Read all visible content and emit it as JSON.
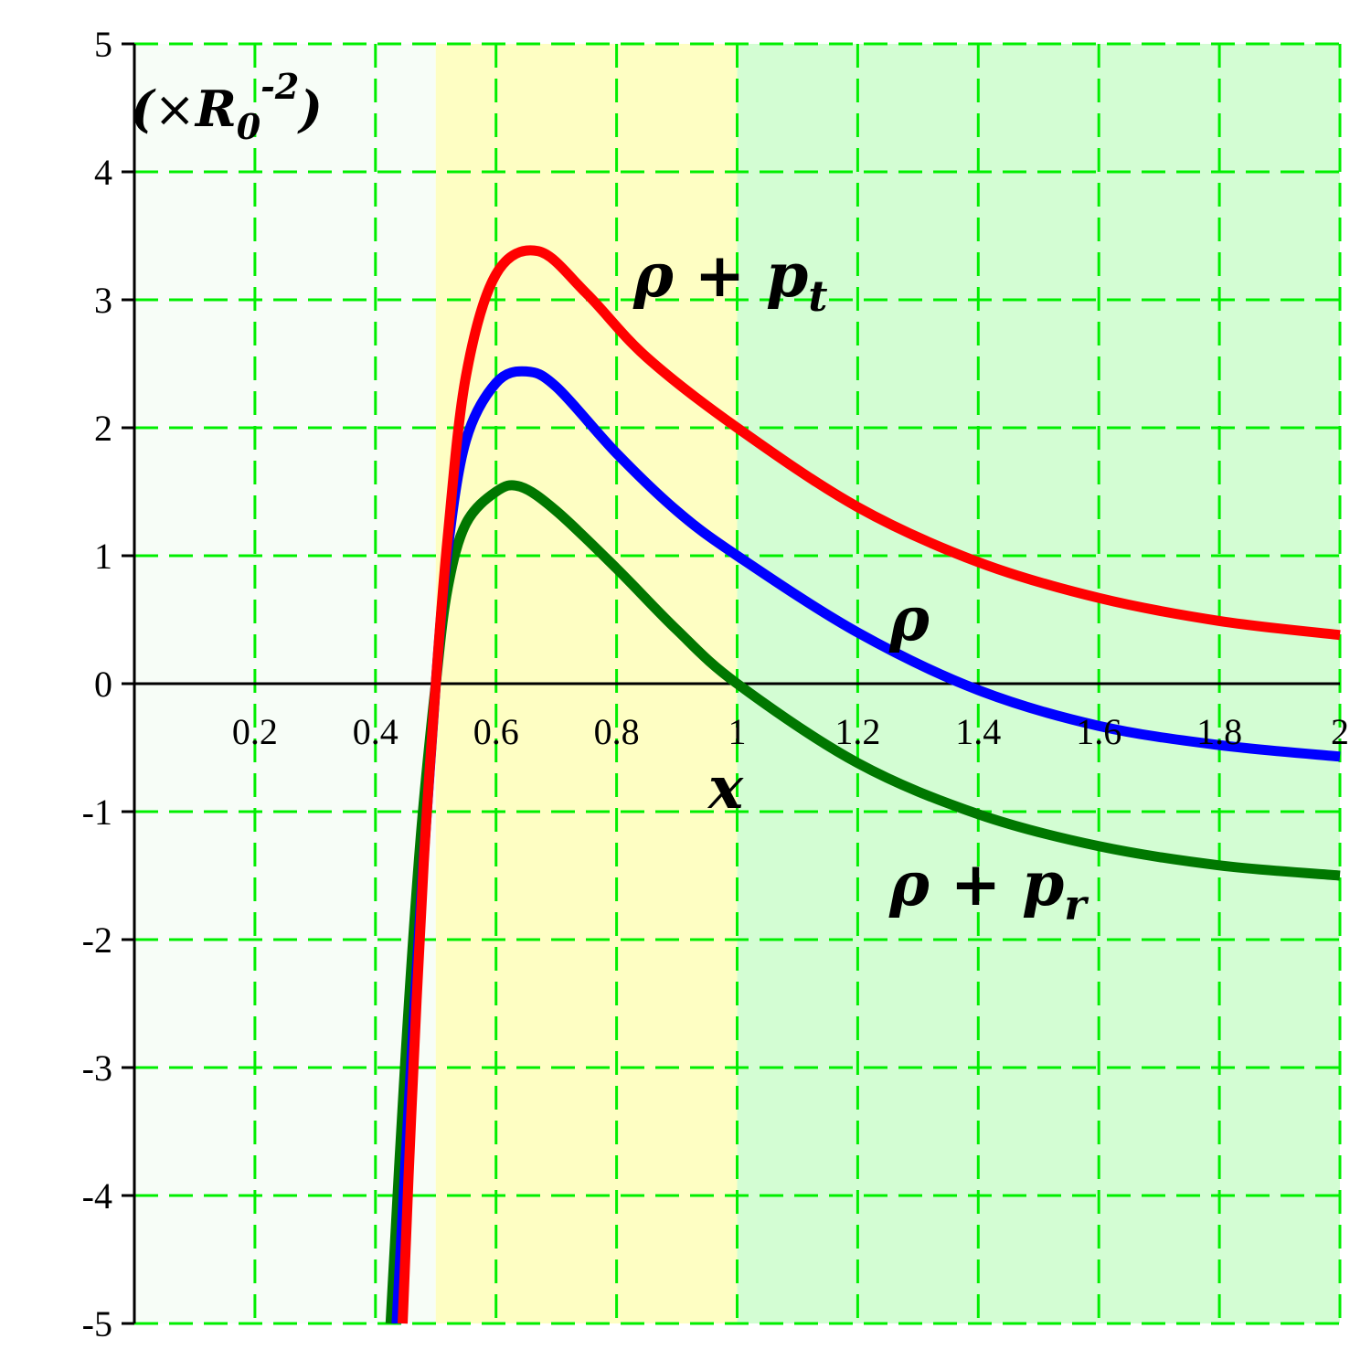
{
  "chart_data": {
    "type": "line",
    "x_range": [
      0,
      2
    ],
    "y_range": [
      -5,
      5
    ],
    "x_ticks": [
      0.2,
      0.4,
      0.6,
      0.8,
      1,
      1.2,
      1.4,
      1.6,
      1.8,
      2
    ],
    "x_tick_labels": [
      "0.2",
      "0.4",
      "0.6",
      "0.8",
      "1",
      "1.2",
      "1.4",
      "1.6",
      "1.8",
      "2"
    ],
    "y_ticks": [
      -5,
      -4,
      -3,
      -2,
      -1,
      0,
      1,
      2,
      3,
      4,
      5
    ],
    "y_tick_labels": [
      "-5",
      "-4",
      "-3",
      "-2",
      "-1",
      "0",
      "1",
      "2",
      "3",
      "4",
      "5"
    ],
    "xlabel": "x",
    "ylabel": "(×R0-2)",
    "unit_label": {
      "open": "(",
      "times": "×",
      "symbol": "R",
      "subscript": "0",
      "superscript": "-2",
      "close": ")"
    },
    "grid": true,
    "grid_color": "#00ee00",
    "regions": [
      {
        "x_from": 0,
        "x_to": 0.5,
        "color": "#f7fdf7"
      },
      {
        "x_from": 0.5,
        "x_to": 1.0,
        "color": "#fefec3"
      },
      {
        "x_from": 1.0,
        "x_to": 2.0,
        "color": "#d3fdd3"
      }
    ],
    "series": [
      {
        "name": "ρ+pt",
        "label_main": "ρ + p",
        "label_sub": "t",
        "color": "#ff0000",
        "points": [
          [
            0.445,
            -5.0
          ],
          [
            0.46,
            -3.3
          ],
          [
            0.48,
            -1.4
          ],
          [
            0.5,
            0.0
          ],
          [
            0.52,
            1.15
          ],
          [
            0.55,
            2.4
          ],
          [
            0.6,
            3.2
          ],
          [
            0.67,
            3.38
          ],
          [
            0.75,
            3.05
          ],
          [
            0.85,
            2.55
          ],
          [
            1.0,
            2.0
          ],
          [
            1.2,
            1.38
          ],
          [
            1.4,
            0.95
          ],
          [
            1.6,
            0.67
          ],
          [
            1.8,
            0.49
          ],
          [
            2.0,
            0.38
          ]
        ]
      },
      {
        "name": "ρ",
        "label_main": "ρ",
        "label_sub": "",
        "color": "#0000ff",
        "points": [
          [
            0.435,
            -5.0
          ],
          [
            0.455,
            -3.3
          ],
          [
            0.48,
            -1.35
          ],
          [
            0.5,
            0.0
          ],
          [
            0.52,
            1.05
          ],
          [
            0.55,
            1.9
          ],
          [
            0.6,
            2.35
          ],
          [
            0.65,
            2.44
          ],
          [
            0.7,
            2.32
          ],
          [
            0.8,
            1.8
          ],
          [
            0.9,
            1.35
          ],
          [
            1.0,
            1.0
          ],
          [
            1.2,
            0.4
          ],
          [
            1.4,
            -0.05
          ],
          [
            1.6,
            -0.33
          ],
          [
            1.8,
            -0.48
          ],
          [
            2.0,
            -0.57
          ]
        ]
      },
      {
        "name": "ρ+pr",
        "label_main": "ρ + p",
        "label_sub": "r",
        "color": "#007700",
        "points": [
          [
            0.425,
            -5.0
          ],
          [
            0.45,
            -2.9
          ],
          [
            0.475,
            -1.2
          ],
          [
            0.5,
            0.0
          ],
          [
            0.52,
            0.75
          ],
          [
            0.55,
            1.25
          ],
          [
            0.6,
            1.5
          ],
          [
            0.64,
            1.54
          ],
          [
            0.7,
            1.35
          ],
          [
            0.8,
            0.9
          ],
          [
            0.9,
            0.42
          ],
          [
            1.0,
            0.0
          ],
          [
            1.2,
            -0.62
          ],
          [
            1.4,
            -1.02
          ],
          [
            1.6,
            -1.27
          ],
          [
            1.8,
            -1.42
          ],
          [
            2.0,
            -1.5
          ]
        ]
      }
    ]
  }
}
